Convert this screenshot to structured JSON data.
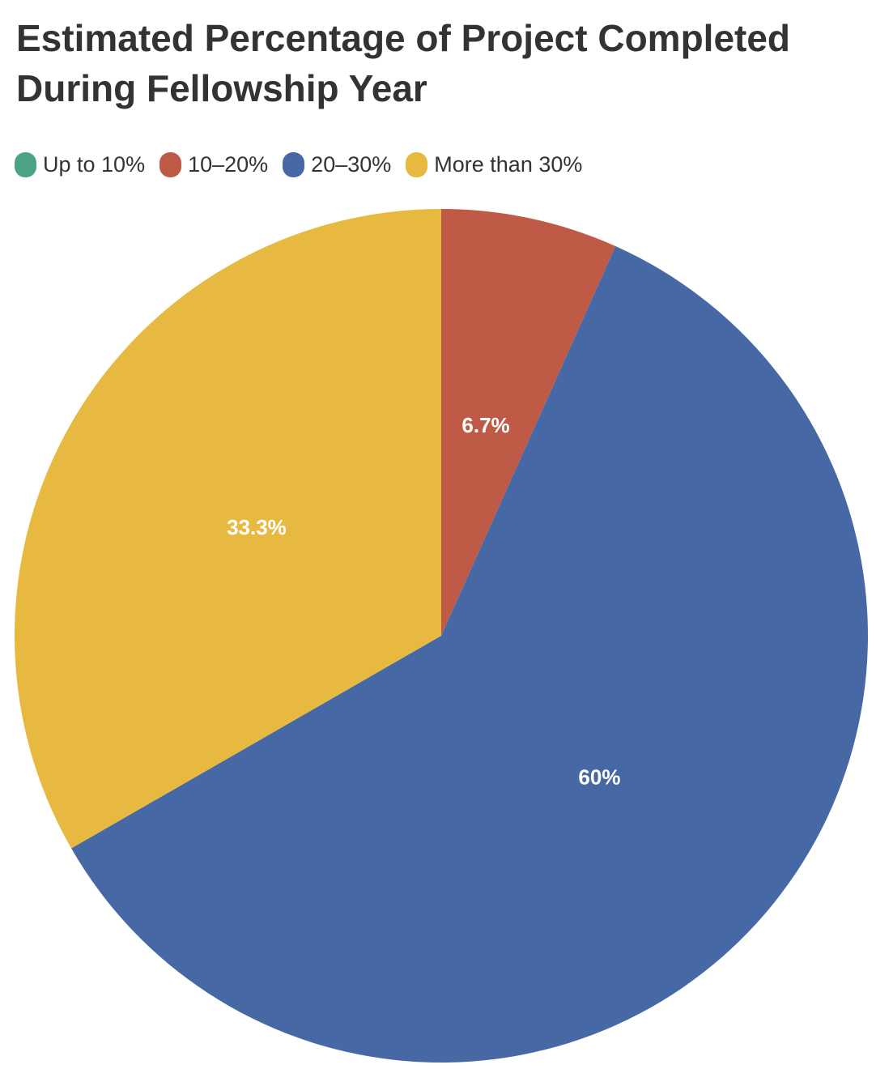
{
  "chart_data": {
    "type": "pie",
    "title": "Estimated Percentage of Project Completed During Fellowship Year",
    "legend_position": "top-left",
    "categories": [
      "Up to 10%",
      "10–20%",
      "20–30%",
      "More than 30%"
    ],
    "values": [
      0,
      6.7,
      60,
      33.3
    ],
    "data_labels": [
      "",
      "6.7%",
      "60%",
      "33.3%"
    ],
    "colors": [
      "#4aa382",
      "#bf5a47",
      "#4669a6",
      "#e8b941"
    ]
  }
}
